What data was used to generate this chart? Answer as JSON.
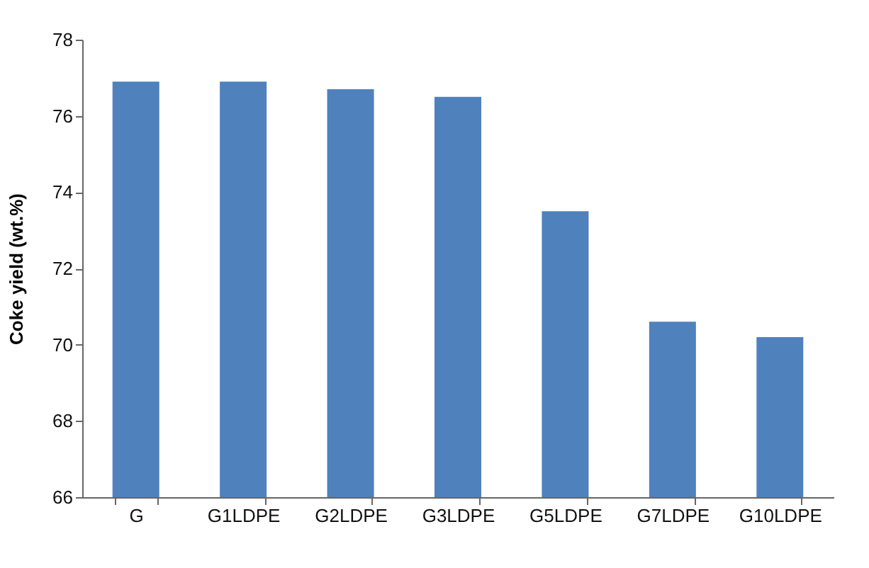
{
  "chart_data": {
    "type": "bar",
    "ylabel": "Coke yield (wt.%)",
    "categories": [
      "G",
      "G1LDPE",
      "G2LDPE",
      "G3LDPE",
      "G5LDPE",
      "G7LDPE",
      "G10LDPE"
    ],
    "values": [
      76.9,
      76.9,
      76.7,
      76.5,
      73.5,
      70.6,
      70.2
    ],
    "color": "#4f81bd",
    "ylim": [
      66,
      78
    ],
    "yticks": [
      66,
      68,
      70,
      72,
      74,
      76,
      78
    ],
    "grid": false
  }
}
